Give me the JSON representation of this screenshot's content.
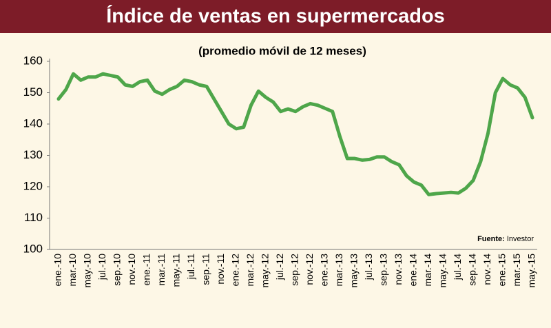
{
  "chart_data": {
    "type": "line",
    "title": "Índice de ventas en supermercados",
    "subtitle": "(promedio móvil de 12 meses)",
    "source": {
      "label": "Fuente:",
      "text": "Investor"
    },
    "categories": [
      "ene.-10",
      null,
      "mar.-10",
      null,
      "may.-10",
      null,
      "jul.-10",
      null,
      "sep.-10",
      null,
      "nov.-10",
      null,
      "ene.-11",
      null,
      "mar.-11",
      null,
      "may.-11",
      null,
      "jul.-11",
      null,
      "sep.-11",
      null,
      "nov.-11",
      null,
      "ene.-12",
      null,
      "mar.-12",
      null,
      "may.-12",
      null,
      "jul.-12",
      null,
      "sep.-12",
      null,
      "nov.-12",
      null,
      "ene.-13",
      null,
      "mar.-13",
      null,
      "may.-13",
      null,
      "jul.-13",
      null,
      "sep.-13",
      null,
      "nov.-13",
      null,
      "ene.-14",
      null,
      "mar.-14",
      null,
      "may.-14",
      null,
      "jul.-14",
      null,
      "sep.-14",
      null,
      "nov.-14",
      null,
      "ene.-15",
      null,
      "mar.-15",
      null,
      "may.-15"
    ],
    "series": [
      {
        "name": "Índice",
        "color": "#4ea64a",
        "values": [
          148,
          151,
          156,
          154,
          155,
          155,
          156,
          155.5,
          155,
          152.5,
          152,
          153.5,
          154,
          150.5,
          149.5,
          151,
          152,
          154,
          153.5,
          152.5,
          152,
          148,
          144,
          140,
          138.5,
          139,
          146,
          150.5,
          148.5,
          147,
          144,
          144.8,
          144,
          145.5,
          146.5,
          146,
          145,
          144,
          136,
          129,
          129,
          128.5,
          128.7,
          129.5,
          129.5,
          128,
          127,
          123.5,
          121.5,
          120.5,
          117.5,
          117.8,
          118,
          118.2,
          118,
          119.5,
          122,
          128,
          137,
          150,
          154.5,
          152.5,
          151.5,
          148.5,
          142
        ]
      }
    ],
    "ylim": [
      100,
      160
    ],
    "yticks": [
      100,
      110,
      120,
      130,
      140,
      150,
      160
    ]
  }
}
